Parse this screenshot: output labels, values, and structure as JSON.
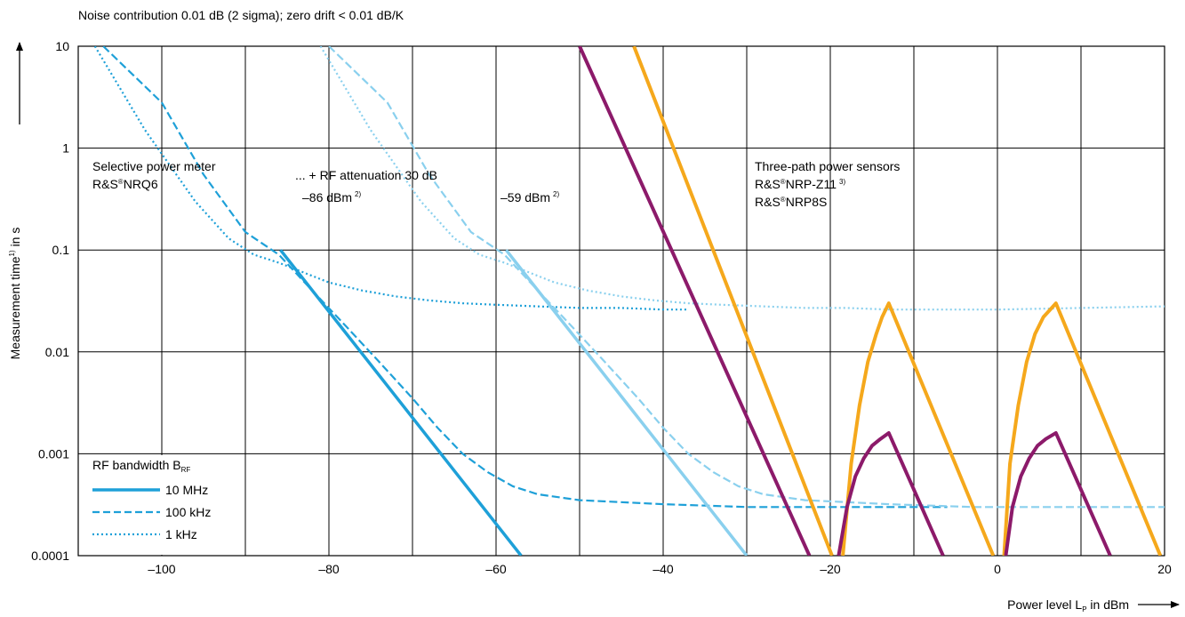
{
  "chart_data": {
    "type": "line",
    "title": "Noise contribution 0.01 dB (2 sigma); zero drift < 0.01 dB/K",
    "xlabel": "Power level L",
    "xlabel_sub": "P",
    "xlabel_unit": " in dBm",
    "ylabel": "Measurement time",
    "ylabel_sup": "1)",
    "ylabel_unit": " in s",
    "x_scale": "linear",
    "y_scale": "log",
    "xlim": [
      -110,
      20
    ],
    "ylim": [
      0.0001,
      10
    ],
    "grid": true,
    "x_ticks": [
      -100,
      -80,
      -60,
      -40,
      -20,
      0,
      20
    ],
    "x_tick_labels": [
      "–100",
      "–80",
      "–60",
      "–40",
      "–20",
      "0",
      "20"
    ],
    "y_ticks": [
      10,
      1,
      0.1,
      0.01,
      0.001,
      0.0001
    ],
    "y_tick_labels": [
      "10",
      "1",
      "0.1",
      "0.01",
      "0.001",
      "0.0001"
    ],
    "colors": {
      "nrq6": "#1ea0d8",
      "nrq6_atten": "#8ad0ee",
      "nrp_z11": "#f5a81c",
      "nrp8s": "#8c1a6a",
      "note_red": "#e0293e"
    },
    "legend": {
      "title": "RF bandwidth B",
      "title_sub": "RF",
      "placement": "bottom-left",
      "entries": [
        {
          "label": "10 MHz",
          "style": "solid"
        },
        {
          "label": "100 kHz",
          "style": "dashed"
        },
        {
          "label": "1 kHz",
          "style": "dotted"
        }
      ]
    },
    "annotations": {
      "selective_line1": "Selective power meter",
      "selective_line2_prefix": "R&S",
      "selective_line2_reg": "®",
      "selective_line2_model": "NRQ6",
      "attenuation": "... + RF attenuation 30 dB",
      "note_86": "–86 dBm",
      "note_86_sup": "2)",
      "note_59": "–59 dBm",
      "note_59_sup": "2)",
      "three_path": "Three-path power sensors",
      "z11_prefix": "R&S",
      "z11_reg": "®",
      "z11_model": "NRP-Z11",
      "z11_sup": "3)",
      "nrp8s_prefix": "R&S",
      "nrp8s_reg": "®",
      "nrp8s_model": "NRP8S"
    },
    "series": [
      {
        "id": "nrq6_10mhz",
        "color_key": "nrq6",
        "style": "solid",
        "width": 3.5,
        "x": [
          -85.8,
          -57.0
        ],
        "y": [
          0.1,
          0.0001
        ]
      },
      {
        "id": "nrq6_100khz",
        "color_key": "nrq6",
        "style": "dashed",
        "width": 2.2,
        "x": [
          -107,
          -100,
          -95,
          -90,
          -86,
          -82,
          -78,
          -74,
          -70,
          -67,
          -64,
          -61,
          -58,
          -55,
          -50,
          -40,
          -30,
          -20,
          -10,
          -6
        ],
        "y": [
          10,
          2.8,
          0.55,
          0.15,
          0.09,
          0.04,
          0.018,
          0.008,
          0.0035,
          0.0018,
          0.001,
          0.00066,
          0.00048,
          0.0004,
          0.00035,
          0.00032,
          0.0003,
          0.0003,
          0.0003,
          0.0003
        ]
      },
      {
        "id": "nrq6_1khz",
        "color_key": "nrq6",
        "style": "dotted",
        "width": 2.2,
        "x": [
          -108,
          -102,
          -96,
          -92,
          -89,
          -86,
          -83,
          -80,
          -76,
          -72,
          -68,
          -64,
          -60,
          -55,
          -50,
          -45,
          -40,
          -37
        ],
        "y": [
          10,
          1.5,
          0.3,
          0.13,
          0.09,
          0.075,
          0.06,
          0.048,
          0.04,
          0.035,
          0.032,
          0.03,
          0.029,
          0.028,
          0.027,
          0.027,
          0.026,
          0.026
        ]
      },
      {
        "id": "atten_10mhz",
        "color_key": "nrq6_atten",
        "style": "solid",
        "width": 3.5,
        "x": [
          -58.8,
          -30.0
        ],
        "y": [
          0.1,
          0.0001
        ]
      },
      {
        "id": "atten_100khz",
        "color_key": "nrq6_atten",
        "style": "dashed",
        "width": 2.2,
        "x": [
          -80,
          -73,
          -68,
          -63,
          -59,
          -55,
          -51,
          -47,
          -43,
          -40,
          -37,
          -34,
          -31,
          -28,
          -23,
          -13,
          -3,
          7,
          17,
          20
        ],
        "y": [
          10,
          2.8,
          0.55,
          0.15,
          0.09,
          0.04,
          0.018,
          0.008,
          0.0035,
          0.0018,
          0.001,
          0.00066,
          0.00048,
          0.0004,
          0.00035,
          0.00032,
          0.0003,
          0.0003,
          0.0003,
          0.0003
        ]
      },
      {
        "id": "atten_1khz",
        "color_key": "nrq6_atten",
        "style": "dotted",
        "width": 2.2,
        "x": [
          -81,
          -75,
          -69,
          -65,
          -62,
          -59,
          -56,
          -53,
          -49,
          -45,
          -41,
          -37,
          -33,
          -28,
          -23,
          -18,
          -13,
          -8,
          0,
          10,
          20
        ],
        "y": [
          10,
          1.5,
          0.3,
          0.13,
          0.09,
          0.075,
          0.06,
          0.048,
          0.04,
          0.035,
          0.032,
          0.03,
          0.029,
          0.028,
          0.027,
          0.027,
          0.026,
          0.026,
          0.026,
          0.027,
          0.028
        ]
      },
      {
        "id": "nrp_z11",
        "color_key": "nrp_z11",
        "style": "solid",
        "width": 4,
        "x": [
          -43.5,
          -19.8,
          null,
          -18.5,
          -17.5,
          -16.5,
          -15.5,
          -14.5,
          -13.8,
          -13.0,
          -0.5,
          null,
          0.8,
          1.5,
          2.5,
          3.5,
          4.5,
          5.5,
          6.5,
          7.0,
          19.5
        ],
        "y": [
          10,
          0.0001,
          null,
          0.0001,
          0.0008,
          0.003,
          0.008,
          0.015,
          0.022,
          0.03,
          0.0001,
          null,
          0.0001,
          0.0008,
          0.003,
          0.008,
          0.015,
          0.022,
          0.027,
          0.03,
          0.0001
        ]
      },
      {
        "id": "nrp8s",
        "color_key": "nrp8s",
        "style": "solid",
        "width": 4,
        "x": [
          -50.0,
          -22.5,
          null,
          -19.0,
          -18.0,
          -17.0,
          -16.0,
          -15.0,
          -14.0,
          -13.0,
          -6.5,
          null,
          1.0,
          1.8,
          2.8,
          3.8,
          4.8,
          5.8,
          7.0,
          13.5
        ],
        "y": [
          10,
          0.0001,
          null,
          0.0001,
          0.0003,
          0.0006,
          0.0009,
          0.0012,
          0.0014,
          0.0016,
          0.0001,
          null,
          0.0001,
          0.0003,
          0.0006,
          0.0009,
          0.0012,
          0.0014,
          0.0016,
          0.0001
        ]
      }
    ]
  }
}
